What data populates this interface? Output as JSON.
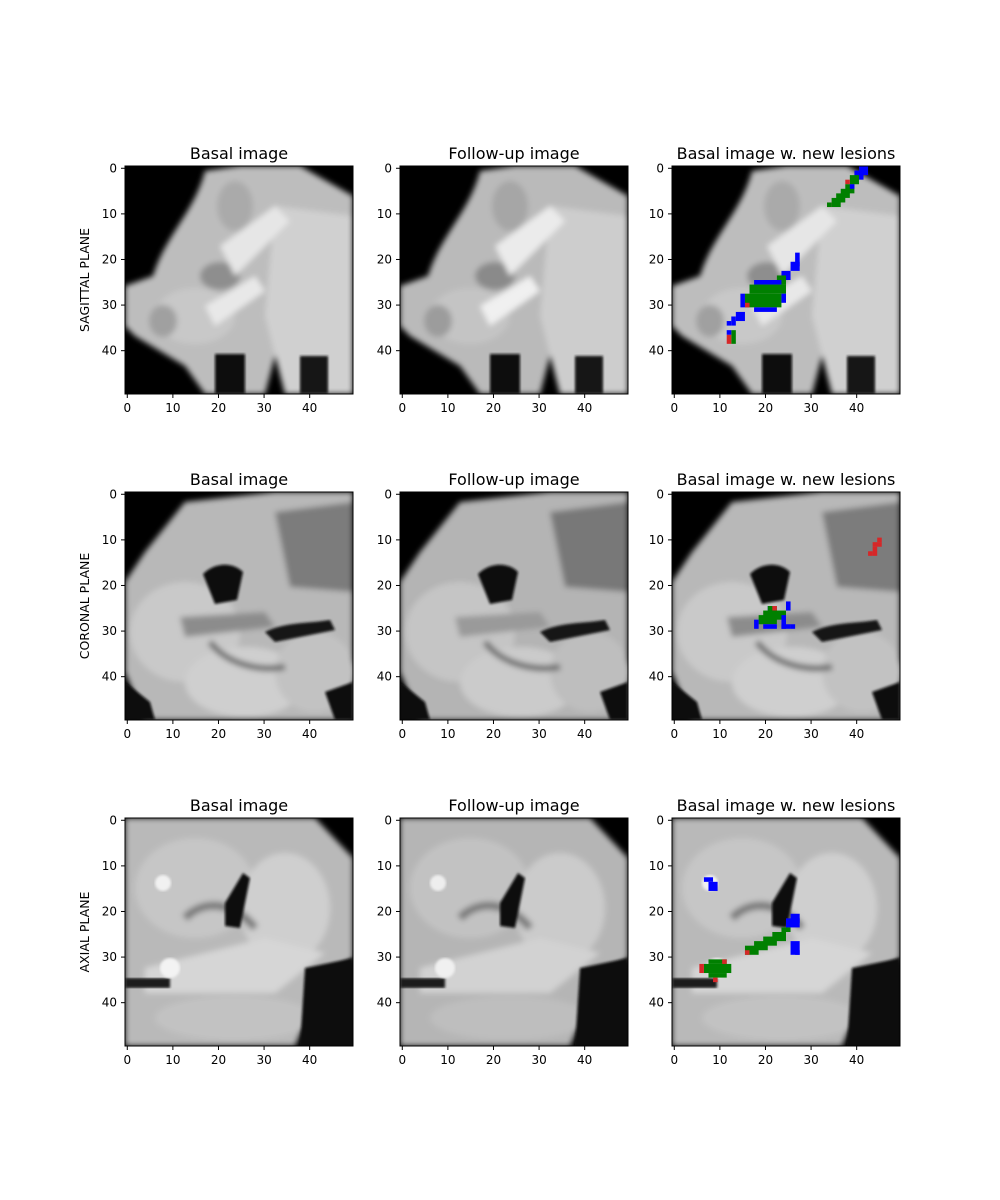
{
  "figure": {
    "rows": [
      {
        "plane_label": "SAGITTAL PLANE",
        "panels": [
          {
            "title": "Basal image",
            "overlay": false
          },
          {
            "title": "Follow-up image",
            "overlay": false
          },
          {
            "title": "Basal image w. new lesions",
            "overlay": true
          }
        ]
      },
      {
        "plane_label": "CORONAL PLANE",
        "panels": [
          {
            "title": "Basal image",
            "overlay": false
          },
          {
            "title": "Follow-up image",
            "overlay": false
          },
          {
            "title": "Basal image w. new lesions",
            "overlay": true
          }
        ]
      },
      {
        "plane_label": "AXIAL PLANE",
        "panels": [
          {
            "title": "Basal image",
            "overlay": false
          },
          {
            "title": "Follow-up image",
            "overlay": false
          },
          {
            "title": "Basal image w. new lesions",
            "overlay": true
          }
        ]
      }
    ],
    "x_ticks": [
      "0",
      "10",
      "20",
      "30",
      "40"
    ],
    "y_ticks": [
      "0",
      "10",
      "20",
      "30",
      "40"
    ],
    "image_extent": [
      0,
      50
    ],
    "colormap": "gray",
    "overlay_colors": {
      "green": "#008000",
      "blue": "#0000ff",
      "red": "#d62728"
    }
  }
}
